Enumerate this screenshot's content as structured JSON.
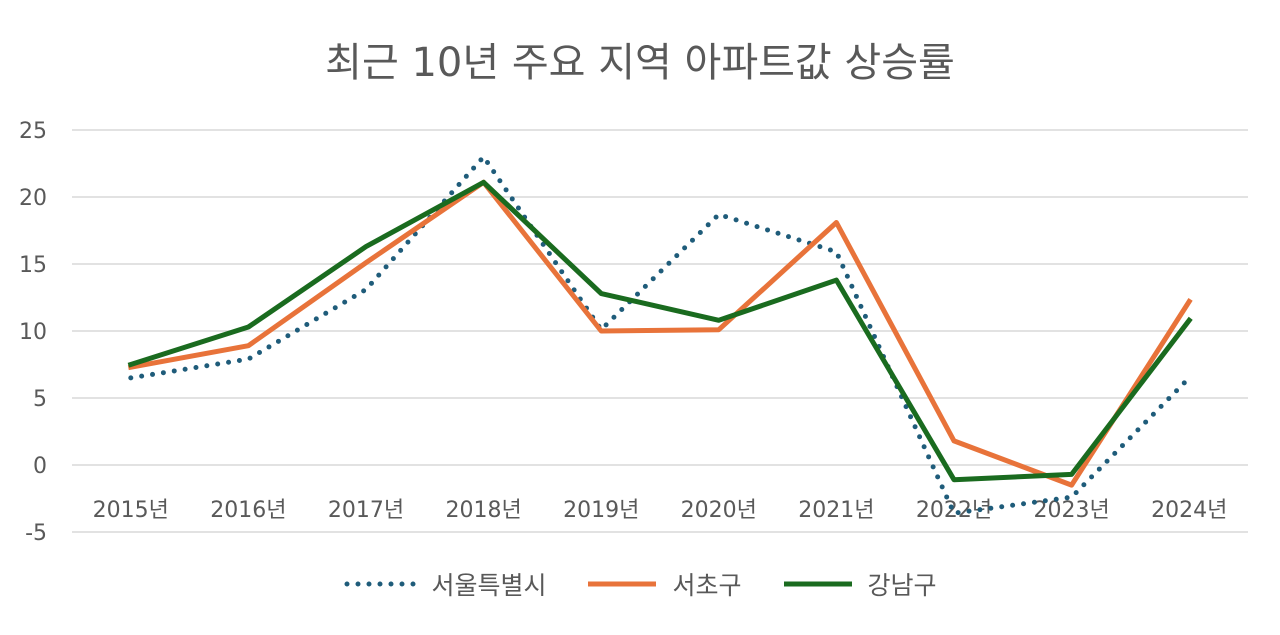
{
  "chart_data": {
    "type": "line",
    "title": "최근 10년 주요 지역 아파트값 상승률",
    "categories": [
      "2015년",
      "2016년",
      "2017년",
      "2018년",
      "2019년",
      "2020년",
      "2021년",
      "2022년",
      "2023년",
      "2024년"
    ],
    "ylim": [
      -5,
      25
    ],
    "yticks": [
      "25",
      "20",
      "15",
      "10",
      "5",
      "0",
      "-5"
    ],
    "ytick_values": [
      25,
      20,
      15,
      10,
      5,
      0,
      -5
    ],
    "grid": true,
    "legend_position": "bottom",
    "xlabel": "",
    "ylabel": "",
    "series": [
      {
        "name": "서울특별시",
        "color": "#1F5C7A",
        "style": "dotted",
        "values": [
          6.5,
          7.9,
          13.1,
          23.0,
          10.1,
          18.7,
          15.9,
          -3.6,
          -2.4,
          6.5
        ]
      },
      {
        "name": "서초구",
        "color": "#E8733A",
        "style": "solid",
        "values": [
          7.3,
          8.9,
          15.1,
          21.1,
          10.0,
          10.1,
          18.1,
          1.8,
          -1.5,
          12.2
        ]
      },
      {
        "name": "강남구",
        "color": "#1A6B1F",
        "style": "solid",
        "values": [
          7.5,
          10.3,
          16.3,
          21.1,
          12.8,
          10.8,
          13.8,
          -1.1,
          -0.7,
          10.8
        ]
      }
    ]
  }
}
